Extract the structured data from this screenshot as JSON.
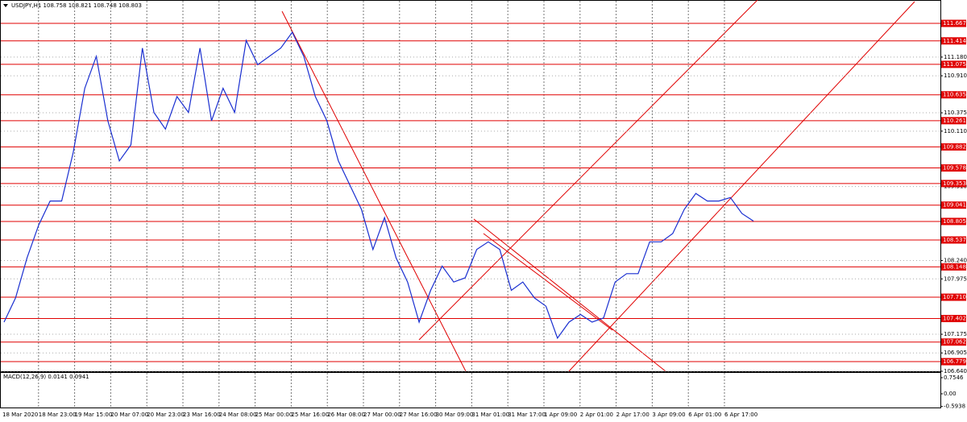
{
  "chart_data": {
    "type": "line",
    "title": "USDJPY,H1  108.758 108.821 108.748 108.803",
    "color": "#1a2fd0",
    "level_color": "#e00000",
    "grid": true,
    "ylim": [
      106.64,
      112.005
    ],
    "yticks": [
      {
        "value": 111.18,
        "label": "111.180"
      },
      {
        "value": 110.91,
        "label": "110.910"
      },
      110.375,
      {
        "value": 110.11,
        "label": "110.110"
      },
      {
        "value": 109.31,
        "label": "109.310"
      },
      {
        "value": 108.24,
        "label": "108.240"
      },
      107.975,
      107.175,
      106.905,
      {
        "value": 106.64,
        "label": "106.640"
      }
    ],
    "levels": [
      111.667,
      111.414,
      111.075,
      110.635,
      110.261,
      109.882,
      109.578,
      109.353,
      109.041,
      108.805,
      108.537,
      108.148,
      {
        "value": 107.71,
        "label": "107.710"
      },
      107.402,
      107.062,
      106.779
    ],
    "x_axis_labels": [
      "18 Mar 2020",
      "18 Mar 23:00",
      "19 Mar 15:00",
      "20 Mar 07:00",
      "20 Mar 23:00",
      "23 Mar 16:00",
      "24 Mar 08:00",
      "25 Mar 00:00",
      "25 Mar 16:00",
      "26 Mar 08:00",
      "27 Mar 00:00",
      "27 Mar 16:00",
      "30 Mar 09:00",
      "31 Mar 01:00",
      "31 Mar 17:00",
      "1 Apr 09:00",
      "2 Apr 01:00",
      "2 Apr 17:00",
      "3 Apr 09:00",
      "6 Apr 01:00",
      "6 Apr 17:00"
    ],
    "values": [
      107.35,
      107.7,
      108.28,
      108.75,
      109.1,
      109.1,
      109.8,
      110.73,
      111.19,
      110.26,
      109.68,
      109.91,
      111.31,
      110.38,
      110.14,
      110.61,
      110.38,
      111.31,
      110.26,
      110.73,
      110.38,
      111.42,
      111.07,
      111.19,
      111.31,
      111.54,
      111.19,
      110.61,
      110.26,
      109.68,
      109.33,
      108.98,
      108.4,
      108.86,
      108.28,
      107.93,
      107.35,
      107.81,
      108.16,
      107.93,
      107.99,
      108.4,
      108.51,
      108.4,
      107.81,
      107.93,
      107.7,
      107.58,
      107.12,
      107.35,
      107.46,
      107.35,
      107.41,
      107.93,
      108.05,
      108.05,
      108.51,
      108.51,
      108.63,
      108.98,
      109.21,
      109.1,
      109.1,
      109.15,
      108.92,
      108.81
    ],
    "macd": {
      "label": "MACD(12,26,9) 0.0141 0.0941",
      "ylim": [
        -0.68,
        0.98
      ],
      "yticks": [
        0.7546,
        {
          "value": 0,
          "label": "0.00"
        },
        -0.5938
      ]
    }
  }
}
